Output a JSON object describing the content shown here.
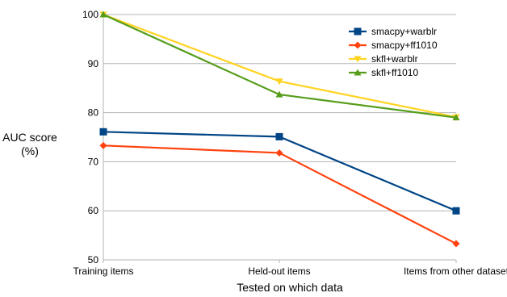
{
  "chart_data": {
    "type": "line",
    "title": "",
    "xlabel": "Tested on which data",
    "ylabel_lines": [
      "AUC score",
      "(%)"
    ],
    "categories": [
      "Training items",
      "Held-out items",
      "Items from other dataset"
    ],
    "ylim": [
      50,
      100
    ],
    "yticks": [
      50,
      60,
      70,
      80,
      90,
      100
    ],
    "grid": "horizontal",
    "legend_position": "top-right",
    "series": [
      {
        "name": "smacpy+warblr",
        "color": "#004586",
        "marker": "square",
        "values": [
          76.1,
          75.1,
          60.0
        ]
      },
      {
        "name": "smacpy+ff1010",
        "color": "#ff420e",
        "marker": "diamond",
        "values": [
          73.3,
          71.8,
          53.3
        ]
      },
      {
        "name": "skfl+warblr",
        "color": "#ffd320",
        "marker": "triangle-down",
        "values": [
          100.0,
          86.4,
          79.1
        ]
      },
      {
        "name": "skfl+ff1010",
        "color": "#579d1c",
        "marker": "triangle-up",
        "values": [
          100.0,
          83.7,
          79.0
        ]
      }
    ]
  }
}
